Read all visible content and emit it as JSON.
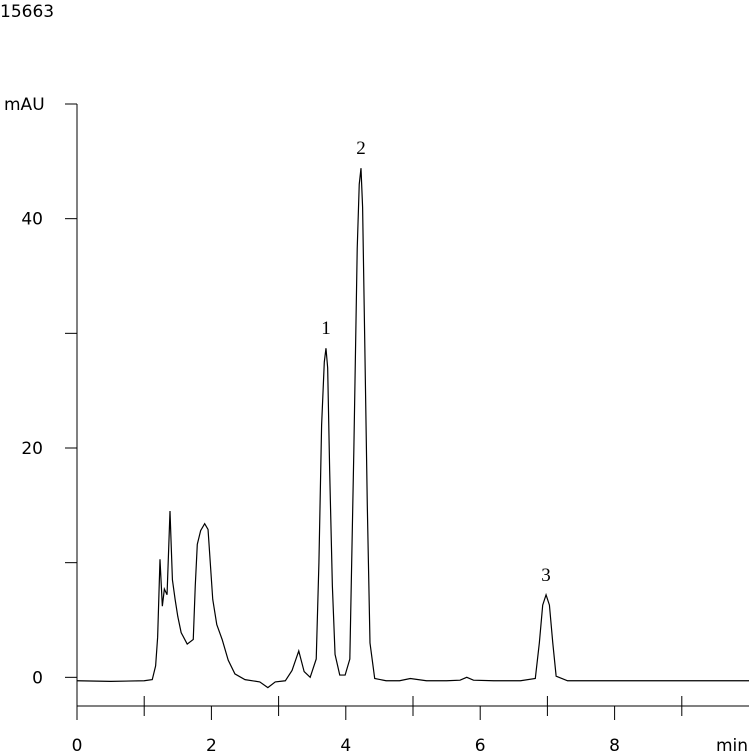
{
  "chart_data": {
    "type": "line",
    "title": "15663",
    "y_label": "mAU",
    "x_label": "min",
    "xlim": [
      0,
      10
    ],
    "ylim": [
      -2.5,
      50
    ],
    "xticks": [
      0,
      2,
      4,
      6,
      8
    ],
    "xminor_ticks": [
      1,
      3,
      5,
      7,
      9
    ],
    "yticks": [
      0,
      20,
      40
    ],
    "yminor_ticks": [
      10,
      30,
      50
    ],
    "color": "#000000",
    "x": [
      0,
      0.5,
      1.0,
      1.12,
      1.17,
      1.2,
      1.235,
      1.27,
      1.3,
      1.34,
      1.384,
      1.42,
      1.46,
      1.5,
      1.55,
      1.64,
      1.73,
      1.76,
      1.79,
      1.84,
      1.9,
      1.95,
      2.02,
      2.08,
      2.16,
      2.25,
      2.35,
      2.5,
      2.72,
      2.84,
      2.95,
      3.1,
      3.2,
      3.3,
      3.38,
      3.47,
      3.56,
      3.6,
      3.64,
      3.68,
      3.705,
      3.73,
      3.76,
      3.8,
      3.84,
      3.91,
      3.99,
      4.06,
      4.12,
      4.17,
      4.2,
      4.226,
      4.25,
      4.28,
      4.32,
      4.36,
      4.43,
      4.6,
      4.8,
      4.96,
      5.2,
      5.5,
      5.7,
      5.8,
      5.9,
      6.2,
      6.6,
      6.82,
      6.88,
      6.93,
      6.98,
      7.03,
      7.08,
      7.13,
      7.3,
      7.8,
      8.5,
      9.2,
      10
    ],
    "values": [
      -0.3,
      -0.35,
      -0.3,
      -0.2,
      1.0,
      3.5,
      10.3,
      6.2,
      7.7,
      7.2,
      14.5,
      8.5,
      6.8,
      5.3,
      3.9,
      2.9,
      3.3,
      8.0,
      11.6,
      12.8,
      13.4,
      12.9,
      6.8,
      4.6,
      3.3,
      1.5,
      0.3,
      -0.2,
      -0.4,
      -0.9,
      -0.4,
      -0.3,
      0.6,
      2.3,
      0.5,
      0.0,
      1.6,
      10.0,
      22.0,
      27.5,
      28.7,
      27.0,
      18.0,
      8.0,
      2.0,
      0.2,
      0.2,
      1.6,
      19.9,
      37.4,
      43.0,
      44.4,
      41.0,
      30.0,
      15.0,
      3.0,
      -0.1,
      -0.3,
      -0.3,
      -0.1,
      -0.3,
      -0.3,
      -0.25,
      0.0,
      -0.25,
      -0.3,
      -0.3,
      -0.1,
      3.0,
      6.3,
      7.2,
      6.3,
      3.0,
      0.1,
      -0.3,
      -0.3,
      -0.3,
      -0.3,
      -0.3
    ],
    "annotations": [
      {
        "label": "1",
        "x": 3.705,
        "y": 28.7
      },
      {
        "label": "2",
        "x": 4.226,
        "y": 44.4
      },
      {
        "label": "3",
        "x": 6.98,
        "y": 7.2
      }
    ]
  }
}
